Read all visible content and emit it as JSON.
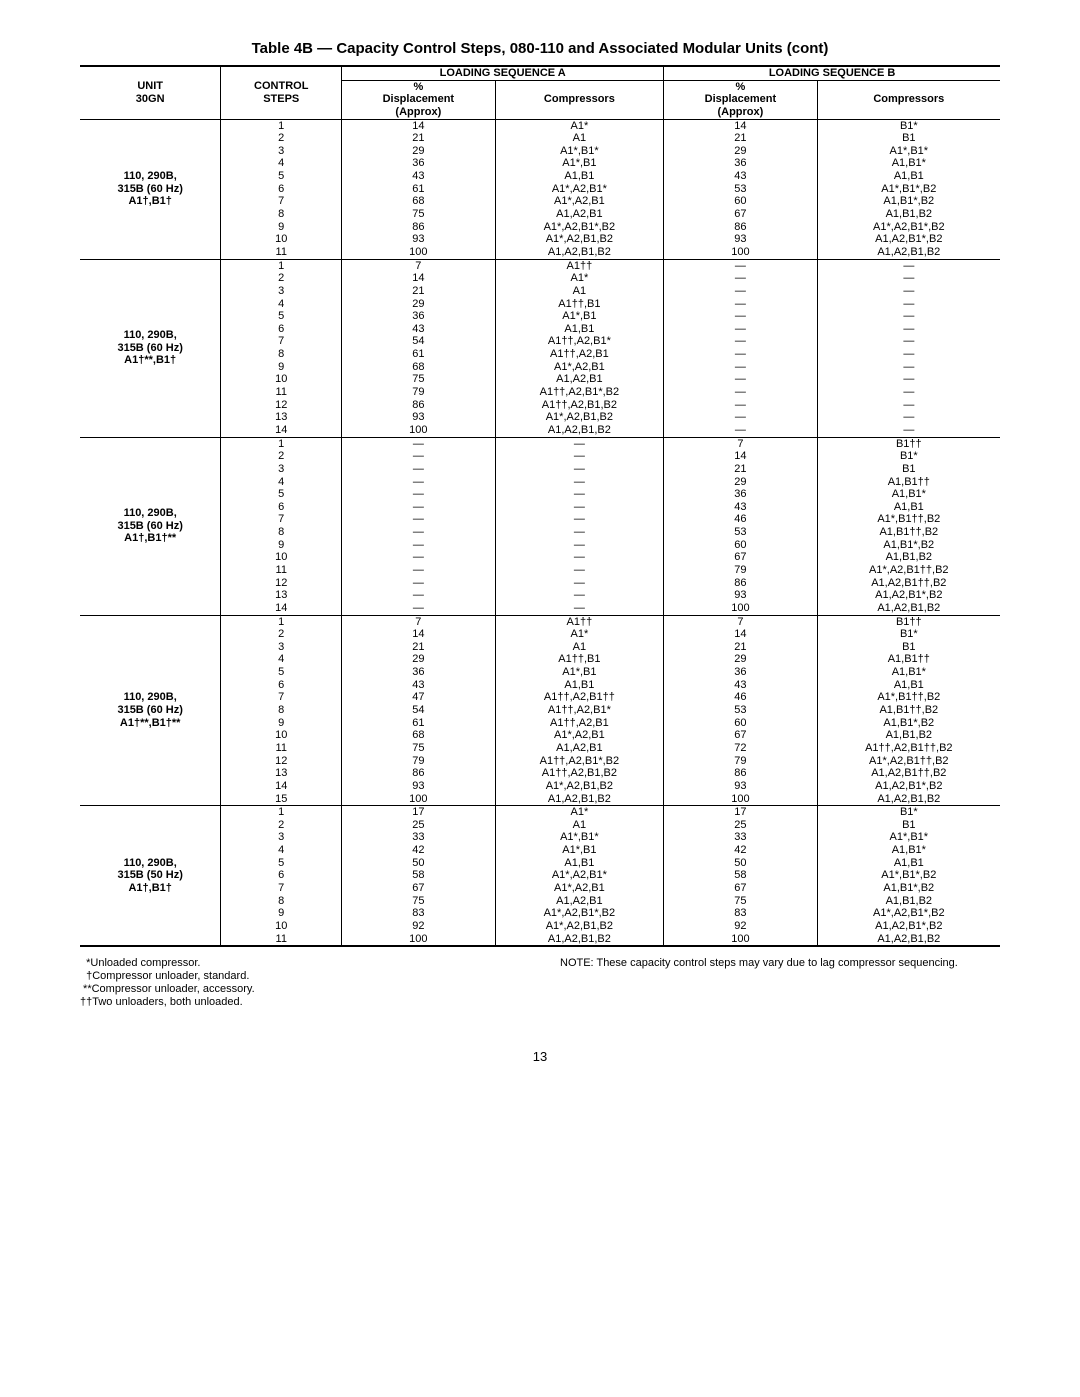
{
  "title": "Table 4B — Capacity Control Steps, 080-110 and Associated Modular Units (cont)",
  "headers": {
    "unit": "UNIT\n30GN",
    "control": "CONTROL\nSTEPS",
    "seqA": "LOADING SEQUENCE A",
    "seqB": "LOADING SEQUENCE B",
    "disp": "%\nDisplacement\n(Approx)",
    "comp": "Compressors"
  },
  "sections": [
    {
      "unit": "110, 290B,\n315B (60 Hz)\nA1†,B1†",
      "rows": [
        [
          "1",
          "14",
          "A1*",
          "14",
          "B1*"
        ],
        [
          "2",
          "21",
          "A1",
          "21",
          "B1"
        ],
        [
          "3",
          "29",
          "A1*,B1*",
          "29",
          "A1*,B1*"
        ],
        [
          "4",
          "36",
          "A1*,B1",
          "36",
          "A1,B1*"
        ],
        [
          "5",
          "43",
          "A1,B1",
          "43",
          "A1,B1"
        ],
        [
          "6",
          "61",
          "A1*,A2,B1*",
          "53",
          "A1*,B1*,B2"
        ],
        [
          "7",
          "68",
          "A1*,A2,B1",
          "60",
          "A1,B1*,B2"
        ],
        [
          "8",
          "75",
          "A1,A2,B1",
          "67",
          "A1,B1,B2"
        ],
        [
          "9",
          "86",
          "A1*,A2,B1*,B2",
          "86",
          "A1*,A2,B1*,B2"
        ],
        [
          "10",
          "93",
          "A1*,A2,B1,B2",
          "93",
          "A1,A2,B1*,B2"
        ],
        [
          "11",
          "100",
          "A1,A2,B1,B2",
          "100",
          "A1,A2,B1,B2"
        ]
      ]
    },
    {
      "unit": "110, 290B,\n315B (60 Hz)\nA1†**,B1†",
      "rows": [
        [
          "1",
          "7",
          "A1††",
          "—",
          "—"
        ],
        [
          "2",
          "14",
          "A1*",
          "—",
          "—"
        ],
        [
          "3",
          "21",
          "A1",
          "—",
          "—"
        ],
        [
          "4",
          "29",
          "A1††,B1",
          "—",
          "—"
        ],
        [
          "5",
          "36",
          "A1*,B1",
          "—",
          "—"
        ],
        [
          "6",
          "43",
          "A1,B1",
          "—",
          "—"
        ],
        [
          "7",
          "54",
          "A1††,A2,B1*",
          "—",
          "—"
        ],
        [
          "8",
          "61",
          "A1††,A2,B1",
          "—",
          "—"
        ],
        [
          "9",
          "68",
          "A1*,A2,B1",
          "—",
          "—"
        ],
        [
          "10",
          "75",
          "A1,A2,B1",
          "—",
          "—"
        ],
        [
          "11",
          "79",
          "A1††,A2,B1*,B2",
          "—",
          "—"
        ],
        [
          "12",
          "86",
          "A1††,A2,B1,B2",
          "—",
          "—"
        ],
        [
          "13",
          "93",
          "A1*,A2,B1,B2",
          "—",
          "—"
        ],
        [
          "14",
          "100",
          "A1,A2,B1,B2",
          "—",
          "—"
        ]
      ]
    },
    {
      "unit": "110, 290B,\n315B (60 Hz)\nA1†,B1†**",
      "rows": [
        [
          "1",
          "—",
          "—",
          "7",
          "B1††"
        ],
        [
          "2",
          "—",
          "—",
          "14",
          "B1*"
        ],
        [
          "3",
          "—",
          "—",
          "21",
          "B1"
        ],
        [
          "4",
          "—",
          "—",
          "29",
          "A1,B1††"
        ],
        [
          "5",
          "—",
          "—",
          "36",
          "A1,B1*"
        ],
        [
          "6",
          "—",
          "—",
          "43",
          "A1,B1"
        ],
        [
          "7",
          "—",
          "—",
          "46",
          "A1*,B1††,B2"
        ],
        [
          "8",
          "—",
          "—",
          "53",
          "A1,B1††,B2"
        ],
        [
          "9",
          "—",
          "—",
          "60",
          "A1,B1*,B2"
        ],
        [
          "10",
          "—",
          "—",
          "67",
          "A1,B1,B2"
        ],
        [
          "11",
          "—",
          "—",
          "79",
          "A1*,A2,B1††,B2"
        ],
        [
          "12",
          "—",
          "—",
          "86",
          "A1,A2,B1††,B2"
        ],
        [
          "13",
          "—",
          "—",
          "93",
          "A1,A2,B1*,B2"
        ],
        [
          "14",
          "—",
          "—",
          "100",
          "A1,A2,B1,B2"
        ]
      ]
    },
    {
      "unit": "110, 290B,\n315B (60 Hz)\nA1†**,B1†**",
      "rows": [
        [
          "1",
          "7",
          "A1††",
          "7",
          "B1††"
        ],
        [
          "2",
          "14",
          "A1*",
          "14",
          "B1*"
        ],
        [
          "3",
          "21",
          "A1",
          "21",
          "B1"
        ],
        [
          "4",
          "29",
          "A1††,B1",
          "29",
          "A1,B1††"
        ],
        [
          "5",
          "36",
          "A1*,B1",
          "36",
          "A1,B1*"
        ],
        [
          "6",
          "43",
          "A1,B1",
          "43",
          "A1,B1"
        ],
        [
          "7",
          "47",
          "A1††,A2,B1††",
          "46",
          "A1*,B1††,B2"
        ],
        [
          "8",
          "54",
          "A1††,A2,B1*",
          "53",
          "A1,B1††,B2"
        ],
        [
          "9",
          "61",
          "A1††,A2,B1",
          "60",
          "A1,B1*,B2"
        ],
        [
          "10",
          "68",
          "A1*,A2,B1",
          "67",
          "A1,B1,B2"
        ],
        [
          "11",
          "75",
          "A1,A2,B1",
          "72",
          "A1††,A2,B1††,B2"
        ],
        [
          "12",
          "79",
          "A1††,A2,B1*,B2",
          "79",
          "A1*,A2,B1††,B2"
        ],
        [
          "13",
          "86",
          "A1††,A2,B1,B2",
          "86",
          "A1,A2,B1††,B2"
        ],
        [
          "14",
          "93",
          "A1*,A2,B1,B2",
          "93",
          "A1,A2,B1*,B2"
        ],
        [
          "15",
          "100",
          "A1,A2,B1,B2",
          "100",
          "A1,A2,B1,B2"
        ]
      ]
    },
    {
      "unit": "110, 290B,\n315B (50 Hz)\nA1†,B1†",
      "rows": [
        [
          "1",
          "17",
          "A1*",
          "17",
          "B1*"
        ],
        [
          "2",
          "25",
          "A1",
          "25",
          "B1"
        ],
        [
          "3",
          "33",
          "A1*,B1*",
          "33",
          "A1*,B1*"
        ],
        [
          "4",
          "42",
          "A1*,B1",
          "42",
          "A1,B1*"
        ],
        [
          "5",
          "50",
          "A1,B1",
          "50",
          "A1,B1"
        ],
        [
          "6",
          "58",
          "A1*,A2,B1*",
          "58",
          "A1*,B1*,B2"
        ],
        [
          "7",
          "67",
          "A1*,A2,B1",
          "67",
          "A1,B1*,B2"
        ],
        [
          "8",
          "75",
          "A1,A2,B1",
          "75",
          "A1,B1,B2"
        ],
        [
          "9",
          "83",
          "A1*,A2,B1*,B2",
          "83",
          "A1*,A2,B1*,B2"
        ],
        [
          "10",
          "92",
          "A1*,A2,B1,B2",
          "92",
          "A1,A2,B1*,B2"
        ],
        [
          "11",
          "100",
          "A1,A2,B1,B2",
          "100",
          "A1,A2,B1,B2"
        ]
      ]
    }
  ],
  "footnotes": {
    "left": [
      "  *Unloaded compressor.",
      "  †Compressor unloader, standard.",
      " **Compressor unloader, accessory.",
      "††Two unloaders, both unloaded."
    ],
    "right": "NOTE: These capacity control steps may vary due to lag compressor sequencing."
  },
  "pagenum": "13"
}
